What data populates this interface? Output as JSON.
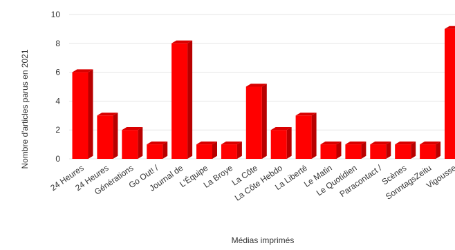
{
  "chart_data": {
    "type": "bar",
    "title": "",
    "xlabel": "Médias imprimés",
    "ylabel": "Nombre d'articles parus en 2021",
    "ylim": [
      0,
      10
    ],
    "yticks": [
      0,
      2,
      4,
      6,
      8,
      10
    ],
    "grid": true,
    "legend": "none",
    "categories": [
      "24 Heures",
      "24 Heures",
      "Générations",
      "Go Out! /",
      "Journal de",
      "L'Équipe",
      "La Broye",
      "La Côte",
      "La Côte Hebdo",
      "La Liberté",
      "Le Matin",
      "Le Quotidien",
      "Paracontact /",
      "Scènes",
      "SonntagsZeitu",
      "Vigousse"
    ],
    "series": [
      {
        "values": [
          6,
          3,
          2,
          1,
          8,
          1,
          1,
          5,
          2,
          3,
          1,
          1,
          1,
          1,
          1,
          9
        ],
        "color": "#ff0000"
      }
    ]
  },
  "colors": {
    "bar_front": "#ff0000",
    "bar_side": "#b80000",
    "bar_top": "#d90000",
    "grid": "#e6e6e6",
    "axis_text": "#333333"
  }
}
